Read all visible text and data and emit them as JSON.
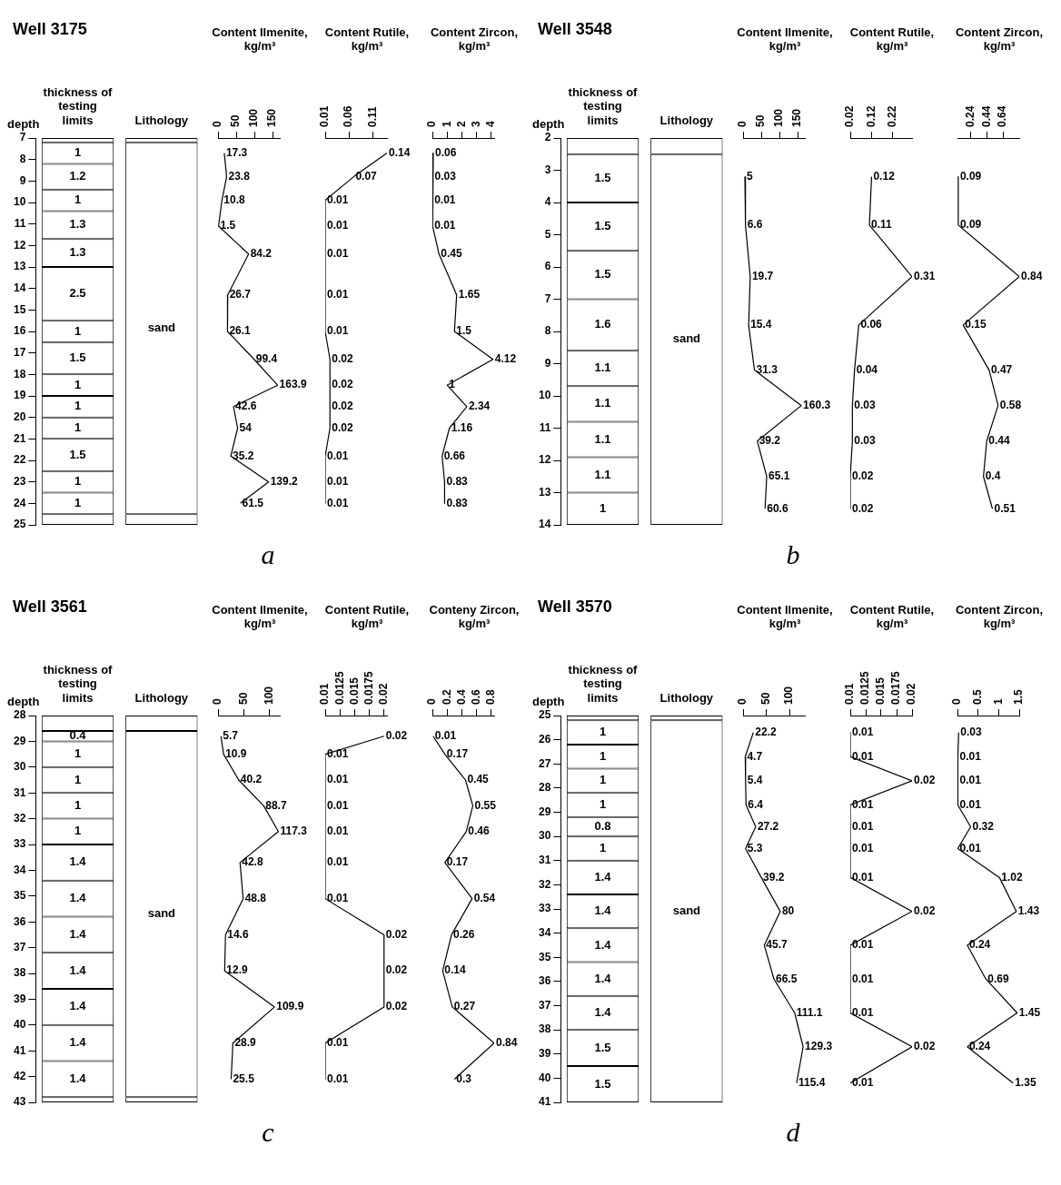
{
  "chart_data": [
    {
      "type": "bar",
      "title": "Well 3175",
      "ylabel": "depth",
      "categories": [
        "thickness of testing limits",
        "Lithology"
      ],
      "ylim": [
        25,
        7
      ],
      "yticks": [
        7,
        8,
        9,
        10,
        11,
        12,
        13,
        14,
        15,
        16,
        17,
        18,
        19,
        20,
        21,
        22,
        23,
        24,
        25
      ],
      "annotations": [
        "a"
      ],
      "series": [
        {
          "color": "#ffffff",
          "base": [
            7.0,
            null
          ],
          "values": [
            0.2,
            null
          ],
          "value_labels": [
            null,
            null
          ]
        },
        {
          "color": "#ffffff",
          "base": [
            7.2,
            null
          ],
          "values": [
            1,
            null
          ],
          "value_labels": [
            "1",
            null
          ]
        },
        {
          "color": "#ffffff",
          "base": [
            8.2,
            null
          ],
          "values": [
            1.2,
            null
          ],
          "value_labels": [
            "1.2",
            null
          ]
        },
        {
          "color": "#ffffff",
          "base": [
            9.4,
            null
          ],
          "values": [
            1,
            null
          ],
          "value_labels": [
            "1",
            null
          ]
        },
        {
          "color": "#ffffff",
          "base": [
            10.4,
            null
          ],
          "values": [
            1.3,
            null
          ],
          "value_labels": [
            "1.3",
            null
          ]
        },
        {
          "color": "#ffffff",
          "base": [
            11.7,
            null
          ],
          "values": [
            1.3,
            null
          ],
          "value_labels": [
            "1.3",
            null
          ]
        },
        {
          "color": "#ffffff",
          "base": [
            13.0,
            null
          ],
          "values": [
            2.5,
            null
          ],
          "value_labels": [
            "2.5",
            null
          ]
        },
        {
          "color": "#ffffff",
          "base": [
            15.5,
            null
          ],
          "values": [
            1,
            null
          ],
          "value_labels": [
            "1",
            null
          ]
        },
        {
          "color": "#ffffff",
          "base": [
            16.5,
            null
          ],
          "values": [
            1.5,
            null
          ],
          "value_labels": [
            "1.5",
            null
          ]
        },
        {
          "color": "#ffffff",
          "base": [
            18.0,
            null
          ],
          "values": [
            1,
            null
          ],
          "value_labels": [
            "1",
            null
          ]
        },
        {
          "color": "#ffffff",
          "base": [
            19.0,
            null
          ],
          "values": [
            1,
            null
          ],
          "value_labels": [
            "1",
            null
          ]
        },
        {
          "color": "#ffffff",
          "base": [
            20.0,
            null
          ],
          "values": [
            1,
            null
          ],
          "value_labels": [
            "1",
            null
          ]
        },
        {
          "color": "#ffffff",
          "base": [
            21.0,
            null
          ],
          "values": [
            1.5,
            null
          ],
          "value_labels": [
            "1.5",
            null
          ]
        },
        {
          "color": "#ffffff",
          "base": [
            22.5,
            null
          ],
          "values": [
            1,
            null
          ],
          "value_labels": [
            "1",
            null
          ]
        },
        {
          "color": "#ffffff",
          "base": [
            23.5,
            null
          ],
          "values": [
            1,
            null
          ],
          "value_labels": [
            "1",
            null
          ]
        },
        {
          "color": "#ffffff",
          "base": [
            24.5,
            null
          ],
          "values": [
            0.5,
            null
          ],
          "value_labels": [
            null,
            null
          ]
        },
        {
          "color": "#ffffff",
          "base": [
            null,
            7.0
          ],
          "values": [
            null,
            0.2
          ],
          "value_labels": [
            null,
            null
          ]
        },
        {
          "color": "#ffffff",
          "base": [
            null,
            7.2
          ],
          "values": [
            null,
            17.3
          ],
          "value_labels": [
            null,
            "sand"
          ]
        },
        {
          "color": "#ffffff",
          "base": [
            null,
            24.5
          ],
          "values": [
            null,
            0.5
          ],
          "value_labels": [
            null,
            null
          ]
        }
      ]
    },
    {
      "type": "line",
      "orientation": "horizontal",
      "title": "Content Ilmenite, kg/m³",
      "color": "#000000",
      "data_labels": true,
      "tick_labels": "x",
      "xlim": [
        0,
        170
      ],
      "xticks": [
        0,
        50,
        100,
        150
      ],
      "ylim": [
        25,
        7
      ],
      "x": [
        7.7,
        8.8,
        9.9,
        11.1,
        12.4,
        14.3,
        16.0,
        17.3,
        18.5,
        19.5,
        20.5,
        21.8,
        23.0,
        24.0
      ],
      "values": [
        17.3,
        23.8,
        10.8,
        1.5,
        84.2,
        26.7,
        26.1,
        99.4,
        163.9,
        42.6,
        54,
        35.2,
        139.2,
        61.5
      ]
    },
    {
      "type": "line",
      "orientation": "horizontal",
      "title": "Content Rutile, kg/m³",
      "color": "#000000",
      "data_labels": true,
      "tick_labels": "x",
      "xlim": [
        0.01,
        0.14
      ],
      "xticks": [
        0.01,
        0.06,
        0.11
      ],
      "ylim": [
        25,
        7
      ],
      "x": [
        7.7,
        8.8,
        9.9,
        11.1,
        12.4,
        14.3,
        16.0,
        17.3,
        18.5,
        19.5,
        20.5,
        21.8,
        23.0,
        24.0
      ],
      "values": [
        0.14,
        0.07,
        0.01,
        0.01,
        0.01,
        0.01,
        0.01,
        0.02,
        0.02,
        0.02,
        0.02,
        0.01,
        0.01,
        0.01
      ]
    },
    {
      "type": "line",
      "orientation": "horizontal",
      "title": "Content Zircon, kg/m³",
      "color": "#000000",
      "data_labels": true,
      "tick_labels": "x",
      "xlim": [
        0,
        4.2
      ],
      "xticks": [
        0,
        1,
        2,
        3,
        4
      ],
      "ylim": [
        25,
        7
      ],
      "x": [
        7.7,
        8.8,
        9.9,
        11.1,
        12.4,
        14.3,
        16.0,
        17.3,
        18.5,
        19.5,
        20.5,
        21.8,
        23.0,
        24.0
      ],
      "values": [
        0.06,
        0.03,
        0.01,
        0.01,
        0.45,
        1.65,
        1.5,
        4.12,
        1,
        2.34,
        1.16,
        0.66,
        0.83,
        0.83
      ]
    },
    {
      "type": "bar",
      "title": "Well 3548",
      "ylabel": "depth",
      "categories": [
        "thickness of testing limits",
        "Lithology"
      ],
      "ylim": [
        14,
        2
      ],
      "yticks": [
        2,
        3,
        4,
        5,
        6,
        7,
        8,
        9,
        10,
        11,
        12,
        13,
        14
      ],
      "annotations": [
        "b"
      ],
      "series": [
        {
          "color": "#ffffff",
          "base": [
            2.0,
            null
          ],
          "values": [
            0.5,
            null
          ],
          "value_labels": [
            null,
            null
          ]
        },
        {
          "color": "#ffffff",
          "base": [
            2.5,
            null
          ],
          "values": [
            1.5,
            null
          ],
          "value_labels": [
            "1.5",
            null
          ]
        },
        {
          "color": "#ffffff",
          "base": [
            4.0,
            null
          ],
          "values": [
            1.5,
            null
          ],
          "value_labels": [
            "1.5",
            null
          ]
        },
        {
          "color": "#ffffff",
          "base": [
            5.5,
            null
          ],
          "values": [
            1.5,
            null
          ],
          "value_labels": [
            "1.5",
            null
          ]
        },
        {
          "color": "#ffffff",
          "base": [
            7.0,
            null
          ],
          "values": [
            1.6,
            null
          ],
          "value_labels": [
            "1.6",
            null
          ]
        },
        {
          "color": "#ffffff",
          "base": [
            8.6,
            null
          ],
          "values": [
            1.1,
            null
          ],
          "value_labels": [
            "1.1",
            null
          ]
        },
        {
          "color": "#ffffff",
          "base": [
            9.7,
            null
          ],
          "values": [
            1.1,
            null
          ],
          "value_labels": [
            "1.1",
            null
          ]
        },
        {
          "color": "#ffffff",
          "base": [
            10.8,
            null
          ],
          "values": [
            1.1,
            null
          ],
          "value_labels": [
            "1.1",
            null
          ]
        },
        {
          "color": "#ffffff",
          "base": [
            11.9,
            null
          ],
          "values": [
            1.1,
            null
          ],
          "value_labels": [
            "1.1",
            null
          ]
        },
        {
          "color": "#ffffff",
          "base": [
            13.0,
            null
          ],
          "values": [
            1,
            null
          ],
          "value_labels": [
            "1",
            null
          ]
        },
        {
          "color": "#ffffff",
          "base": [
            null,
            2.0
          ],
          "values": [
            null,
            0.5
          ],
          "value_labels": [
            null,
            null
          ]
        },
        {
          "color": "#ffffff",
          "base": [
            null,
            2.5
          ],
          "values": [
            null,
            11.5
          ],
          "value_labels": [
            null,
            "sand"
          ]
        }
      ]
    },
    {
      "type": "line",
      "orientation": "horizontal",
      "title": "Content Ilmenite, kg/m³",
      "color": "#000000",
      "data_labels": true,
      "tick_labels": "x",
      "xlim": [
        0,
        170
      ],
      "xticks": [
        0,
        50,
        100,
        150
      ],
      "ylim": [
        14,
        2
      ],
      "x": [
        3.2,
        4.7,
        6.3,
        7.8,
        9.2,
        10.3,
        11.4,
        12.5,
        13.5
      ],
      "values": [
        5,
        6.6,
        19.7,
        15.4,
        31.3,
        160.3,
        39.2,
        65.1,
        60.6
      ]
    },
    {
      "type": "line",
      "orientation": "horizontal",
      "title": "Content Rutile, kg/m³",
      "color": "#000000",
      "data_labels": true,
      "tick_labels": "x",
      "xlim": [
        0.02,
        0.31
      ],
      "xticks": [
        0.02,
        0.12,
        0.22
      ],
      "ylim": [
        14,
        2
      ],
      "x": [
        3.2,
        4.7,
        6.3,
        7.8,
        9.2,
        10.3,
        11.4,
        12.5,
        13.5
      ],
      "values": [
        0.12,
        0.11,
        0.31,
        0.06,
        0.04,
        0.03,
        0.03,
        0.02,
        0.02
      ]
    },
    {
      "type": "line",
      "orientation": "horizontal",
      "title": "Content Zircon, kg/m³",
      "color": "#000000",
      "data_labels": true,
      "tick_labels": "x",
      "xlim": [
        0.08,
        0.84
      ],
      "xticks": [
        0.24,
        0.44,
        0.64
      ],
      "ylim": [
        14,
        2
      ],
      "x": [
        3.2,
        4.7,
        6.3,
        7.8,
        9.2,
        10.3,
        11.4,
        12.5,
        13.5
      ],
      "values": [
        0.09,
        0.09,
        0.84,
        0.15,
        0.47,
        0.58,
        0.44,
        0.4,
        0.51
      ]
    },
    {
      "type": "bar",
      "title": "Well 3561",
      "ylabel": "depth",
      "categories": [
        "thickness of testing limits",
        "Lithology"
      ],
      "ylim": [
        43,
        28
      ],
      "yticks": [
        28,
        29,
        30,
        31,
        32,
        33,
        34,
        35,
        36,
        37,
        38,
        39,
        40,
        41,
        42,
        43
      ],
      "annotations": [
        "c"
      ],
      "series": [
        {
          "color": "#ffffff",
          "base": [
            28.0,
            null
          ],
          "values": [
            0.6,
            null
          ],
          "value_labels": [
            null,
            null
          ]
        },
        {
          "color": "#ffffff",
          "base": [
            28.6,
            null
          ],
          "values": [
            0.4,
            null
          ],
          "value_labels": [
            "0.4",
            null
          ]
        },
        {
          "color": "#ffffff",
          "base": [
            29.0,
            null
          ],
          "values": [
            1,
            null
          ],
          "value_labels": [
            "1",
            null
          ]
        },
        {
          "color": "#ffffff",
          "base": [
            30.0,
            null
          ],
          "values": [
            1,
            null
          ],
          "value_labels": [
            "1",
            null
          ]
        },
        {
          "color": "#ffffff",
          "base": [
            31.0,
            null
          ],
          "values": [
            1,
            null
          ],
          "value_labels": [
            "1",
            null
          ]
        },
        {
          "color": "#ffffff",
          "base": [
            32.0,
            null
          ],
          "values": [
            1,
            null
          ],
          "value_labels": [
            "1",
            null
          ]
        },
        {
          "color": "#ffffff",
          "base": [
            33.0,
            null
          ],
          "values": [
            1.4,
            null
          ],
          "value_labels": [
            "1.4",
            null
          ]
        },
        {
          "color": "#ffffff",
          "base": [
            34.4,
            null
          ],
          "values": [
            1.4,
            null
          ],
          "value_labels": [
            "1.4",
            null
          ]
        },
        {
          "color": "#ffffff",
          "base": [
            35.8,
            null
          ],
          "values": [
            1.4,
            null
          ],
          "value_labels": [
            "1.4",
            null
          ]
        },
        {
          "color": "#ffffff",
          "base": [
            37.2,
            null
          ],
          "values": [
            1.4,
            null
          ],
          "value_labels": [
            "1.4",
            null
          ]
        },
        {
          "color": "#ffffff",
          "base": [
            38.6,
            null
          ],
          "values": [
            1.4,
            null
          ],
          "value_labels": [
            "1.4",
            null
          ]
        },
        {
          "color": "#ffffff",
          "base": [
            40.0,
            null
          ],
          "values": [
            1.4,
            null
          ],
          "value_labels": [
            "1.4",
            null
          ]
        },
        {
          "color": "#ffffff",
          "base": [
            41.4,
            null
          ],
          "values": [
            1.4,
            null
          ],
          "value_labels": [
            "1.4",
            null
          ]
        },
        {
          "color": "#ffffff",
          "base": [
            42.8,
            null
          ],
          "values": [
            0.2,
            null
          ],
          "value_labels": [
            null,
            null
          ]
        },
        {
          "color": "#ffffff",
          "base": [
            null,
            28.0
          ],
          "values": [
            null,
            0.6
          ],
          "value_labels": [
            null,
            null
          ]
        },
        {
          "color": "#ffffff",
          "base": [
            null,
            28.6
          ],
          "values": [
            null,
            14.2
          ],
          "value_labels": [
            null,
            "sand"
          ]
        },
        {
          "color": "#ffffff",
          "base": [
            null,
            42.8
          ],
          "values": [
            null,
            0.2
          ],
          "value_labels": [
            null,
            null
          ]
        }
      ]
    },
    {
      "type": "line",
      "orientation": "horizontal",
      "title": "Content Ilmenite, kg/m³",
      "color": "#000000",
      "data_labels": true,
      "tick_labels": "x",
      "xlim": [
        0,
        120
      ],
      "xticks": [
        0,
        50,
        100
      ],
      "ylim": [
        43,
        28
      ],
      "x": [
        28.8,
        29.5,
        30.5,
        31.5,
        32.5,
        33.7,
        35.1,
        36.5,
        37.9,
        39.3,
        40.7,
        42.1
      ],
      "values": [
        5.7,
        10.9,
        40.2,
        88.7,
        117.3,
        42.8,
        48.8,
        14.6,
        12.9,
        109.9,
        28.9,
        25.5
      ]
    },
    {
      "type": "line",
      "orientation": "horizontal",
      "title": "Content Rutile, kg/m³",
      "color": "#000000",
      "data_labels": true,
      "tick_labels": "x",
      "xlim": [
        0.01,
        0.0205
      ],
      "xticks": [
        0.01,
        0.0125,
        0.015,
        0.0175,
        0.02
      ],
      "ylim": [
        43,
        28
      ],
      "x": [
        28.8,
        29.5,
        30.5,
        31.5,
        32.5,
        33.7,
        35.1,
        36.5,
        37.9,
        39.3,
        40.7,
        42.1
      ],
      "values": [
        0.02,
        0.01,
        0.01,
        0.01,
        0.01,
        0.01,
        0.01,
        0.02,
        0.02,
        0.02,
        0.01,
        0.01
      ]
    },
    {
      "type": "line",
      "orientation": "horizontal",
      "title": "Conteny Zircon, kg/m³",
      "color": "#000000",
      "data_labels": true,
      "tick_labels": "x",
      "xlim": [
        0,
        0.84
      ],
      "xticks": [
        0,
        0.2,
        0.4,
        0.6,
        0.8
      ],
      "ylim": [
        43,
        28
      ],
      "x": [
        28.8,
        29.5,
        30.5,
        31.5,
        32.5,
        33.7,
        35.1,
        36.5,
        37.9,
        39.3,
        40.7,
        42.1
      ],
      "values": [
        0.01,
        0.17,
        0.45,
        0.55,
        0.46,
        0.17,
        0.54,
        0.26,
        0.14,
        0.27,
        0.84,
        0.3
      ]
    },
    {
      "type": "bar",
      "title": "Well 3570",
      "ylabel": "depth",
      "categories": [
        "thickness of testing limits",
        "Lithology"
      ],
      "ylim": [
        41,
        25
      ],
      "yticks": [
        25,
        26,
        27,
        28,
        29,
        30,
        31,
        32,
        33,
        34,
        35,
        36,
        37,
        38,
        39,
        40,
        41
      ],
      "annotations": [
        "d"
      ],
      "series": [
        {
          "color": "#ffffff",
          "base": [
            25.0,
            null
          ],
          "values": [
            0.2,
            null
          ],
          "value_labels": [
            null,
            null
          ]
        },
        {
          "color": "#ffffff",
          "base": [
            25.2,
            null
          ],
          "values": [
            1,
            null
          ],
          "value_labels": [
            "1",
            null
          ]
        },
        {
          "color": "#ffffff",
          "base": [
            26.2,
            null
          ],
          "values": [
            1,
            null
          ],
          "value_labels": [
            "1",
            null
          ]
        },
        {
          "color": "#ffffff",
          "base": [
            27.2,
            null
          ],
          "values": [
            1,
            null
          ],
          "value_labels": [
            "1",
            null
          ]
        },
        {
          "color": "#ffffff",
          "base": [
            28.2,
            null
          ],
          "values": [
            1,
            null
          ],
          "value_labels": [
            "1",
            null
          ]
        },
        {
          "color": "#ffffff",
          "base": [
            29.2,
            null
          ],
          "values": [
            0.8,
            null
          ],
          "value_labels": [
            "0.8",
            null
          ]
        },
        {
          "color": "#ffffff",
          "base": [
            30.0,
            null
          ],
          "values": [
            1,
            null
          ],
          "value_labels": [
            "1",
            null
          ]
        },
        {
          "color": "#ffffff",
          "base": [
            31.0,
            null
          ],
          "values": [
            1.4,
            null
          ],
          "value_labels": [
            "1.4",
            null
          ]
        },
        {
          "color": "#ffffff",
          "base": [
            32.4,
            null
          ],
          "values": [
            1.4,
            null
          ],
          "value_labels": [
            "1.4",
            null
          ]
        },
        {
          "color": "#ffffff",
          "base": [
            33.8,
            null
          ],
          "values": [
            1.4,
            null
          ],
          "value_labels": [
            "1.4",
            null
          ]
        },
        {
          "color": "#ffffff",
          "base": [
            35.2,
            null
          ],
          "values": [
            1.4,
            null
          ],
          "value_labels": [
            "1.4",
            null
          ]
        },
        {
          "color": "#ffffff",
          "base": [
            36.6,
            null
          ],
          "values": [
            1.4,
            null
          ],
          "value_labels": [
            "1.4",
            null
          ]
        },
        {
          "color": "#ffffff",
          "base": [
            38.0,
            null
          ],
          "values": [
            1.5,
            null
          ],
          "value_labels": [
            "1.5",
            null
          ]
        },
        {
          "color": "#ffffff",
          "base": [
            39.5,
            null
          ],
          "values": [
            1.5,
            null
          ],
          "value_labels": [
            "1.5",
            null
          ]
        },
        {
          "color": "#ffffff",
          "base": [
            null,
            25.0
          ],
          "values": [
            null,
            0.2
          ],
          "value_labels": [
            null,
            null
          ]
        },
        {
          "color": "#ffffff",
          "base": [
            null,
            25.2
          ],
          "values": [
            null,
            15.8
          ],
          "value_labels": [
            null,
            "sand"
          ]
        }
      ]
    },
    {
      "type": "line",
      "orientation": "horizontal",
      "title": "Content Ilmenite, kg/m³",
      "color": "#000000",
      "data_labels": true,
      "tick_labels": "x",
      "xlim": [
        0,
        133
      ],
      "xticks": [
        0,
        50,
        100
      ],
      "ylim": [
        41,
        25
      ],
      "x": [
        25.7,
        26.7,
        27.7,
        28.7,
        29.6,
        30.5,
        31.7,
        33.1,
        34.5,
        35.9,
        37.3,
        38.7,
        40.2
      ],
      "values": [
        22.2,
        4.7,
        5.4,
        6.4,
        27.2,
        5.3,
        39.2,
        80,
        45.7,
        66.5,
        111.1,
        129.3,
        115.4
      ]
    },
    {
      "type": "line",
      "orientation": "horizontal",
      "title": "Content Rutile, kg/m³",
      "color": "#000000",
      "data_labels": true,
      "tick_labels": "x",
      "xlim": [
        0.01,
        0.02
      ],
      "xticks": [
        0.01,
        0.0125,
        0.015,
        0.0175,
        0.02
      ],
      "ylim": [
        41,
        25
      ],
      "x": [
        25.7,
        26.7,
        27.7,
        28.7,
        29.6,
        30.5,
        31.7,
        33.1,
        34.5,
        35.9,
        37.3,
        38.7,
        40.2
      ],
      "values": [
        0.01,
        0.01,
        0.02,
        0.01,
        0.01,
        0.01,
        0.01,
        0.02,
        0.01,
        0.01,
        0.01,
        0.02,
        0.01
      ]
    },
    {
      "type": "line",
      "orientation": "horizontal",
      "title": "Content Zircon, kg/m³",
      "color": "#000000",
      "data_labels": true,
      "tick_labels": "x",
      "xlim": [
        0,
        1.5
      ],
      "xticks": [
        0,
        0.5,
        1,
        1.5
      ],
      "ylim": [
        41,
        25
      ],
      "x": [
        25.7,
        26.7,
        27.7,
        28.7,
        29.6,
        30.5,
        31.7,
        33.1,
        34.5,
        35.9,
        37.3,
        38.7,
        40.2
      ],
      "values": [
        0.03,
        0.01,
        0.01,
        0.01,
        0.32,
        0.01,
        1.02,
        1.43,
        0.24,
        0.69,
        1.45,
        0.24,
        1.35
      ]
    }
  ]
}
